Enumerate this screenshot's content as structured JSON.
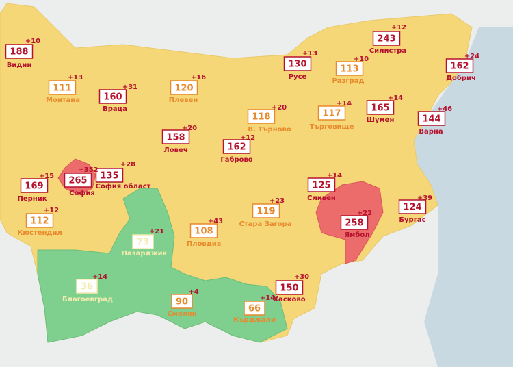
{
  "regions": [
    {
      "name": "Видин",
      "value": 188,
      "delta": "+10",
      "color": "#b5122e"
    },
    {
      "name": "Монтана",
      "value": 111,
      "delta": "+13",
      "color": "#e8892c"
    },
    {
      "name": "Враца",
      "value": 160,
      "delta": "+31",
      "color": "#b5122e"
    },
    {
      "name": "Плевен",
      "value": 120,
      "delta": "+16",
      "color": "#e8892c"
    },
    {
      "name": "Русе",
      "value": 130,
      "delta": "+13",
      "color": "#b5122e"
    },
    {
      "name": "Разград",
      "value": 113,
      "delta": "+10",
      "color": "#e8892c"
    },
    {
      "name": "Силистра",
      "value": 243,
      "delta": "+12",
      "color": "#b5122e"
    },
    {
      "name": "Добрич",
      "value": 162,
      "delta": "+24",
      "color": "#b5122e"
    },
    {
      "name": "В. Търново",
      "value": 118,
      "delta": "+20",
      "color": "#e8892c"
    },
    {
      "name": "Търговище",
      "value": 117,
      "delta": "+14",
      "color": "#e8892c"
    },
    {
      "name": "Шумен",
      "value": 165,
      "delta": "+14",
      "color": "#b5122e"
    },
    {
      "name": "Варна",
      "value": 144,
      "delta": "+46",
      "color": "#b5122e"
    },
    {
      "name": "Ловеч",
      "value": 158,
      "delta": "+20",
      "color": "#b5122e"
    },
    {
      "name": "Габрово",
      "value": 162,
      "delta": "+12",
      "color": "#b5122e"
    },
    {
      "name": "София област",
      "value": 135,
      "delta": "+28",
      "color": "#b5122e"
    },
    {
      "name": "София",
      "value": 265,
      "delta": "+352",
      "color": "#b5122e"
    },
    {
      "name": "Перник",
      "value": 169,
      "delta": "+15",
      "color": "#b5122e"
    },
    {
      "name": "Кюстендил",
      "value": 112,
      "delta": "+12",
      "color": "#e8892c"
    },
    {
      "name": "Сливен",
      "value": 125,
      "delta": "+14",
      "color": "#b5122e"
    },
    {
      "name": "Ямбол",
      "value": 258,
      "delta": "+22",
      "color": "#b5122e"
    },
    {
      "name": "Бургас",
      "value": 124,
      "delta": "+39",
      "color": "#b5122e"
    },
    {
      "name": "Стара Загора",
      "value": 119,
      "delta": "+23",
      "color": "#e8892c"
    },
    {
      "name": "Пловдив",
      "value": 108,
      "delta": "+43",
      "color": "#e8892c"
    },
    {
      "name": "Пазарджик",
      "value": 73,
      "delta": "+21",
      "color": "#f3ecb0"
    },
    {
      "name": "Благоевград",
      "value": 36,
      "delta": "+14",
      "color": "#f3ecb0"
    },
    {
      "name": "Смолян",
      "value": 90,
      "delta": "+4",
      "color": "#e8892c"
    },
    {
      "name": "Кърджали",
      "value": 66,
      "delta": "+14",
      "color": "#e8892c"
    },
    {
      "name": "Хасково",
      "value": 150,
      "delta": "+30",
      "color": "#b5122e"
    }
  ]
}
